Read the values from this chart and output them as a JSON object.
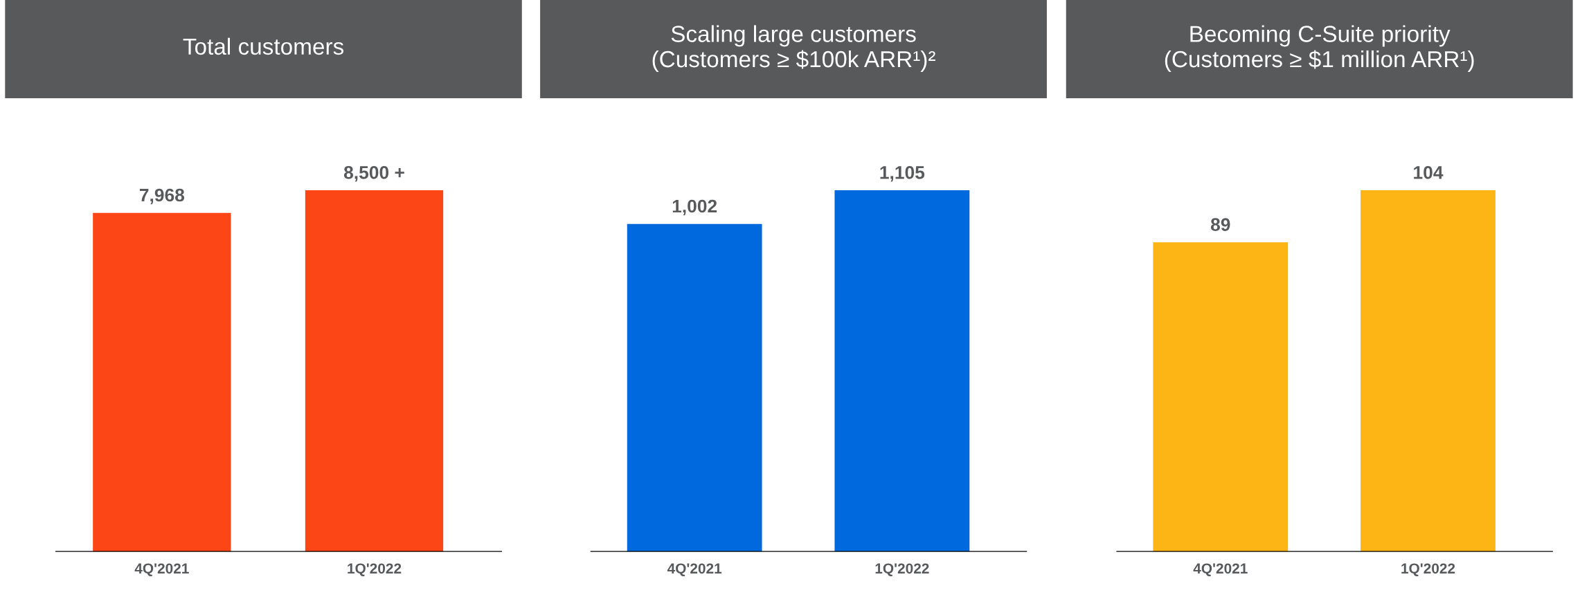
{
  "chart_data": [
    {
      "type": "bar",
      "title": "Total customers",
      "categories": [
        "4Q'2021",
        "1Q'2022"
      ],
      "values": [
        7968,
        8500
      ],
      "value_labels": [
        "7,968",
        "8,500 +"
      ],
      "color": "#fc4616",
      "tick_labels": "x"
    },
    {
      "type": "bar",
      "title": "Scaling large customers\n(Customers ≥ $100k ARR¹)²",
      "categories": [
        "4Q'2021",
        "1Q'2022"
      ],
      "values": [
        1002,
        1105
      ],
      "value_labels": [
        "1,002",
        "1,105"
      ],
      "color": "#0069de",
      "tick_labels": "x"
    },
    {
      "type": "bar",
      "title": "Becoming C-Suite priority\n(Customers ≥ $1 million ARR¹)",
      "categories": [
        "4Q'2021",
        "1Q'2022"
      ],
      "values": [
        89,
        104
      ],
      "value_labels": [
        "89",
        "104"
      ],
      "color": "#fdb415",
      "tick_labels": "x"
    }
  ]
}
